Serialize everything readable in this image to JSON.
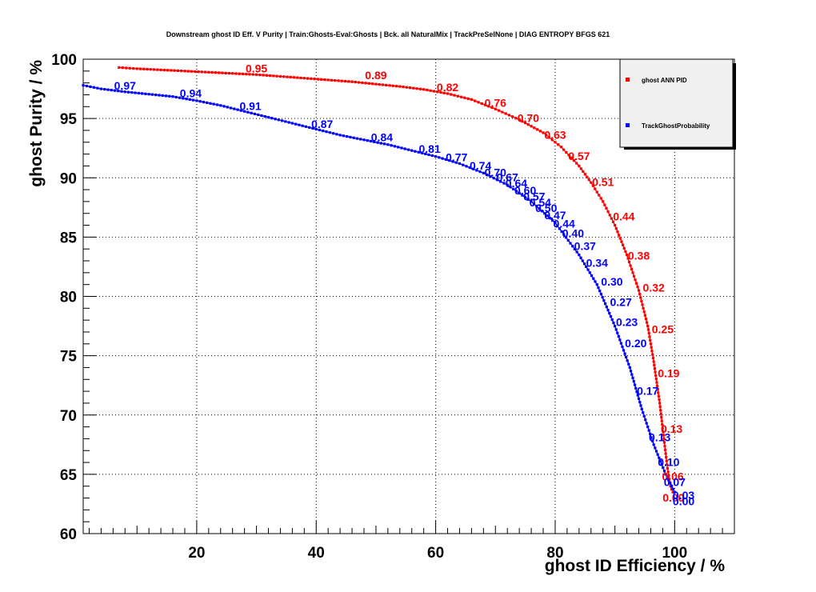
{
  "chart_data": {
    "type": "line",
    "title": "Downstream ghost ID Eff. V Purity | Train:Ghosts-Eval:Ghosts | Bck. all NaturalMix | TrackPreSelNone | DIAG ENTROPY BFGS 621",
    "xlabel": "ghost ID Efficiency / %",
    "ylabel": "ghost Purity / %",
    "xlim": [
      1,
      110
    ],
    "ylim": [
      60,
      100
    ],
    "x_ticks": [
      20,
      40,
      60,
      80,
      100
    ],
    "y_ticks": [
      60,
      65,
      70,
      75,
      80,
      85,
      90,
      95,
      100
    ],
    "grid": true,
    "legend_position": "top-right",
    "colors": {
      "ann": "#ff0000",
      "tgp": "#0000ff"
    },
    "series": [
      {
        "name": "ghost ANN PID",
        "color": "#ff0000",
        "points": [
          [
            7,
            99.3
          ],
          [
            10,
            99.2
          ],
          [
            14,
            99.1
          ],
          [
            18,
            99.0
          ],
          [
            22,
            98.9
          ],
          [
            26,
            98.8
          ],
          [
            30,
            98.7
          ],
          [
            34,
            98.55
          ],
          [
            38,
            98.4
          ],
          [
            42,
            98.25
          ],
          [
            46,
            98.1
          ],
          [
            50,
            97.9
          ],
          [
            54,
            97.7
          ],
          [
            58,
            97.45
          ],
          [
            62,
            97.1
          ],
          [
            66,
            96.6
          ],
          [
            70,
            95.8
          ],
          [
            74,
            94.9
          ],
          [
            78,
            93.8
          ],
          [
            81,
            92.6
          ],
          [
            84,
            91.0
          ],
          [
            86,
            89.6
          ],
          [
            88,
            88.0
          ],
          [
            90,
            86.0
          ],
          [
            92,
            83.5
          ],
          [
            94,
            80.5
          ],
          [
            95.5,
            77.5
          ],
          [
            96.5,
            74.5
          ],
          [
            97.5,
            71.0
          ],
          [
            98.2,
            68.0
          ],
          [
            98.8,
            65.5
          ],
          [
            99.3,
            64.0
          ],
          [
            99.7,
            63.5
          ]
        ],
        "labels": [
          {
            "text": "0.95",
            "x": 30,
            "y": 98.7
          },
          {
            "text": "0.89",
            "x": 50,
            "y": 98.1
          },
          {
            "text": "0.82",
            "x": 62,
            "y": 97.1
          },
          {
            "text": "0.76",
            "x": 70,
            "y": 95.8
          },
          {
            "text": "0.70",
            "x": 75.5,
            "y": 94.5
          },
          {
            "text": "0.63",
            "x": 80,
            "y": 93.1
          },
          {
            "text": "0.57",
            "x": 84,
            "y": 91.3
          },
          {
            "text": "0.51",
            "x": 88,
            "y": 89.1
          },
          {
            "text": "0.44",
            "x": 91.5,
            "y": 86.2
          },
          {
            "text": "0.38",
            "x": 94,
            "y": 82.9
          },
          {
            "text": "0.32",
            "x": 96.5,
            "y": 80.2
          },
          {
            "text": "0.25",
            "x": 98,
            "y": 76.7
          },
          {
            "text": "0.19",
            "x": 99,
            "y": 73.0
          },
          {
            "text": "0.13",
            "x": 99.5,
            "y": 68.3
          },
          {
            "text": "0.06",
            "x": 99.7,
            "y": 64.3
          },
          {
            "text": "0.00",
            "x": 99.8,
            "y": 62.5
          }
        ]
      },
      {
        "name": "TrackGhostProbability",
        "color": "#0000ff",
        "points": [
          [
            1,
            97.8
          ],
          [
            4,
            97.5
          ],
          [
            8,
            97.25
          ],
          [
            12,
            97.05
          ],
          [
            16,
            96.85
          ],
          [
            20,
            96.5
          ],
          [
            24,
            96.1
          ],
          [
            28,
            95.6
          ],
          [
            32,
            95.1
          ],
          [
            36,
            94.6
          ],
          [
            40,
            94.1
          ],
          [
            44,
            93.6
          ],
          [
            48,
            93.2
          ],
          [
            52,
            92.8
          ],
          [
            56,
            92.3
          ],
          [
            60,
            91.8
          ],
          [
            64,
            91.2
          ],
          [
            68,
            90.4
          ],
          [
            72,
            89.4
          ],
          [
            76,
            88.0
          ],
          [
            80,
            86.2
          ],
          [
            84,
            83.5
          ],
          [
            87,
            81.0
          ],
          [
            90,
            77.5
          ],
          [
            92.5,
            74.0
          ],
          [
            94.5,
            70.5
          ],
          [
            96.5,
            67.5
          ],
          [
            98.5,
            65.0
          ],
          [
            100,
            63.5
          ]
        ],
        "labels": [
          {
            "text": "0.97",
            "x": 8,
            "y": 97.25
          },
          {
            "text": "0.94",
            "x": 19,
            "y": 96.6
          },
          {
            "text": "0.91",
            "x": 29,
            "y": 95.5
          },
          {
            "text": "0.87",
            "x": 41,
            "y": 94.0
          },
          {
            "text": "0.84",
            "x": 51,
            "y": 92.9
          },
          {
            "text": "0.81",
            "x": 59,
            "y": 91.9
          },
          {
            "text": "0.77",
            "x": 63.5,
            "y": 91.2
          },
          {
            "text": "0.74",
            "x": 67.5,
            "y": 90.5
          },
          {
            "text": "0.70",
            "x": 70,
            "y": 89.9
          },
          {
            "text": "0.67",
            "x": 72,
            "y": 89.5
          },
          {
            "text": "0.64",
            "x": 73.5,
            "y": 89.0
          },
          {
            "text": "0.60",
            "x": 75,
            "y": 88.4
          },
          {
            "text": "0.57",
            "x": 76.5,
            "y": 87.9
          },
          {
            "text": "0.54",
            "x": 77.5,
            "y": 87.4
          },
          {
            "text": "0.50",
            "x": 78.5,
            "y": 86.9
          },
          {
            "text": "0.47",
            "x": 80,
            "y": 86.3
          },
          {
            "text": "0.44",
            "x": 81.5,
            "y": 85.6
          },
          {
            "text": "0.40",
            "x": 83,
            "y": 84.8
          },
          {
            "text": "0.37",
            "x": 85,
            "y": 83.7
          },
          {
            "text": "0.34",
            "x": 87,
            "y": 82.3
          },
          {
            "text": "0.30",
            "x": 89.5,
            "y": 80.7
          },
          {
            "text": "0.27",
            "x": 91,
            "y": 79.0
          },
          {
            "text": "0.23",
            "x": 92,
            "y": 77.3
          },
          {
            "text": "0.20",
            "x": 93.5,
            "y": 75.5
          },
          {
            "text": "0.17",
            "x": 95.5,
            "y": 71.5
          },
          {
            "text": "0.13",
            "x": 97.5,
            "y": 67.6
          },
          {
            "text": "0.10",
            "x": 99,
            "y": 65.5
          },
          {
            "text": "0.07",
            "x": 100,
            "y": 63.8
          },
          {
            "text": "0.03",
            "x": 101.5,
            "y": 62.7
          },
          {
            "text": "0.00",
            "x": 101.5,
            "y": 62.2
          }
        ]
      }
    ]
  }
}
